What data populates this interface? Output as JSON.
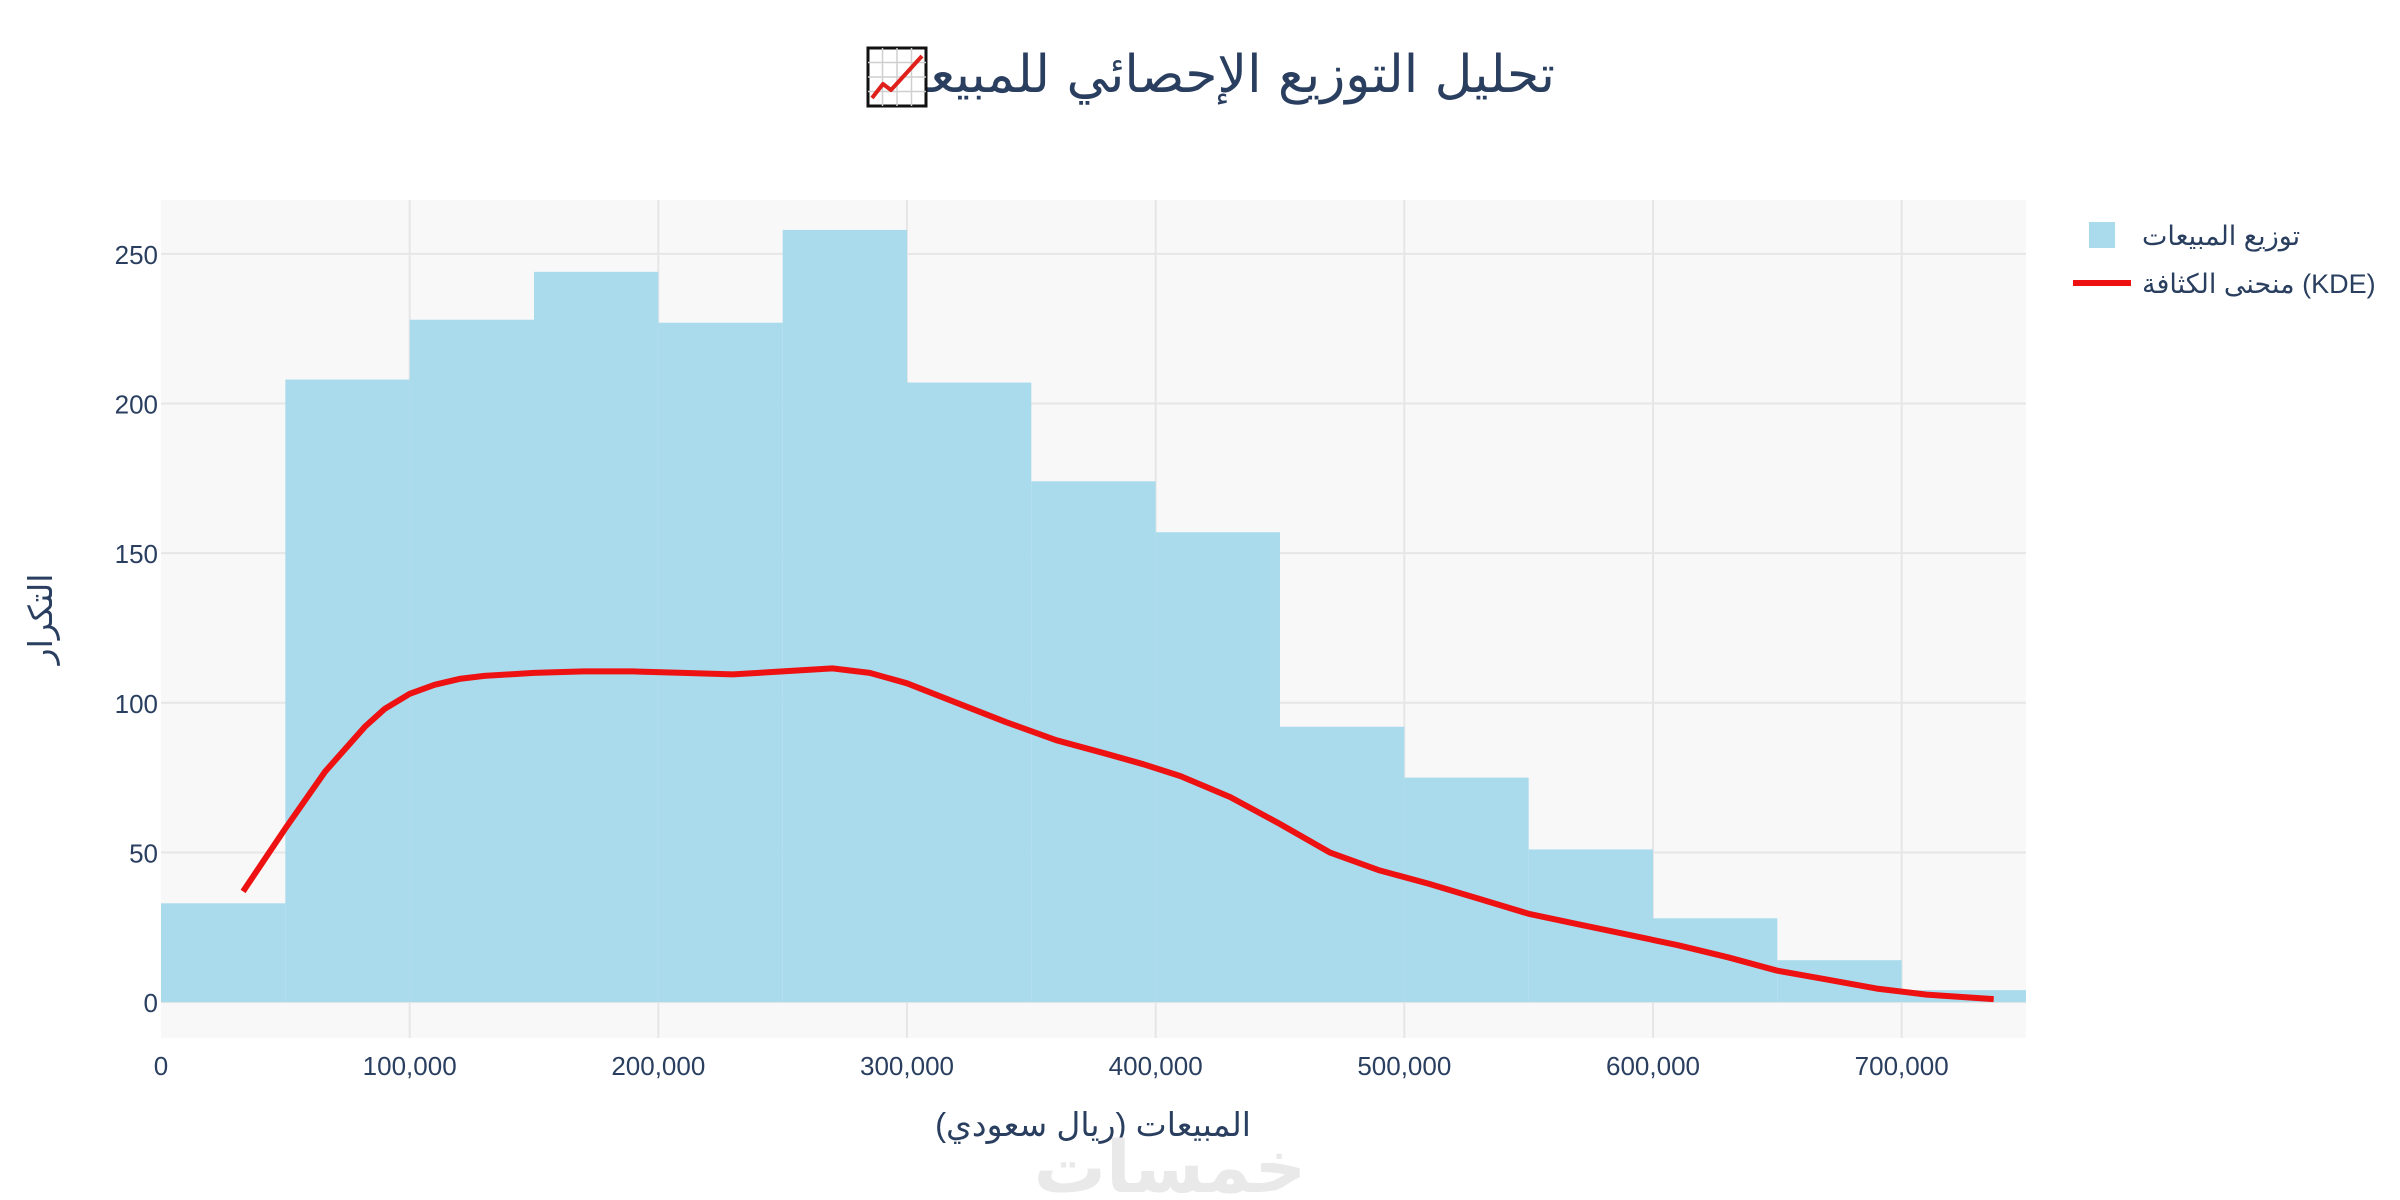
{
  "title": "تحليل التوزيع الإحصائي للمبيعات",
  "title_icon": "chart-increasing-icon",
  "watermark": "خمسات",
  "colors": {
    "histogram": "#a9dbed",
    "kde": "#ee1111",
    "plot_bg": "#f8f8f8",
    "grid": "#e6e6e6",
    "text": "#2a3f5f"
  },
  "chart_data": {
    "type": "bar",
    "xlabel": "المبيعات (ريال سعودي)",
    "ylabel": "التكرار",
    "xlim": [
      0,
      750000
    ],
    "ylim": [
      -12,
      268
    ],
    "x_ticks": [
      0,
      100000,
      200000,
      300000,
      400000,
      500000,
      600000,
      700000
    ],
    "x_tick_labels": [
      "0",
      "100,000",
      "200,000",
      "300,000",
      "400,000",
      "500,000",
      "600,000",
      "700,000"
    ],
    "y_ticks": [
      0,
      50,
      100,
      150,
      200,
      250
    ],
    "y_tick_labels": [
      "0",
      "50",
      "100",
      "150",
      "200",
      "250"
    ],
    "grid": true,
    "legend_position": "top-right",
    "legend": [
      "توزيع المبيعات",
      "منحنى الكثافة (KDE)"
    ],
    "series": [
      {
        "name": "توزيع المبيعات",
        "type": "histogram",
        "bin_width": 50000,
        "bins": [
          {
            "start": 0,
            "end": 50000,
            "count": 33
          },
          {
            "start": 50000,
            "end": 100000,
            "count": 208
          },
          {
            "start": 100000,
            "end": 150000,
            "count": 228
          },
          {
            "start": 150000,
            "end": 200000,
            "count": 244
          },
          {
            "start": 200000,
            "end": 250000,
            "count": 227
          },
          {
            "start": 250000,
            "end": 300000,
            "count": 258
          },
          {
            "start": 300000,
            "end": 350000,
            "count": 207
          },
          {
            "start": 350000,
            "end": 400000,
            "count": 174
          },
          {
            "start": 400000,
            "end": 450000,
            "count": 157
          },
          {
            "start": 450000,
            "end": 500000,
            "count": 92
          },
          {
            "start": 500000,
            "end": 550000,
            "count": 75
          },
          {
            "start": 550000,
            "end": 600000,
            "count": 51
          },
          {
            "start": 600000,
            "end": 650000,
            "count": 28
          },
          {
            "start": 650000,
            "end": 700000,
            "count": 14
          },
          {
            "start": 700000,
            "end": 750000,
            "count": 4
          }
        ]
      },
      {
        "name": "منحنى الكثافة (KDE)",
        "type": "line",
        "x": [
          33000,
          50000,
          66000,
          82000,
          90000,
          100000,
          110000,
          120000,
          130000,
          150000,
          170000,
          190000,
          210000,
          230000,
          250000,
          270000,
          285000,
          300000,
          320000,
          340000,
          360000,
          380000,
          395000,
          410000,
          430000,
          450000,
          470000,
          490000,
          510000,
          530000,
          550000,
          570000,
          590000,
          610000,
          630000,
          650000,
          670000,
          690000,
          710000,
          737000
        ],
        "y": [
          37,
          58,
          77,
          92,
          98,
          103,
          106,
          108,
          109,
          110,
          110.5,
          110.5,
          110,
          109.5,
          110.5,
          111.5,
          110,
          106.5,
          100,
          93.5,
          87.5,
          83,
          79.5,
          75.5,
          68.5,
          59.5,
          50,
          44,
          39.5,
          34.5,
          29.5,
          26,
          22.5,
          19,
          15,
          10.5,
          7.5,
          4.5,
          2.5,
          1
        ]
      }
    ]
  }
}
